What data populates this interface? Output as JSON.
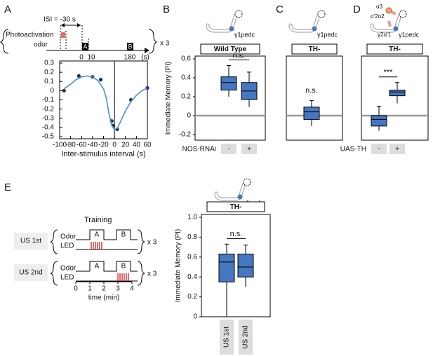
{
  "chart_data": [
    {
      "type": "line",
      "panel": "A",
      "xlabel": "Inter-stimulus interval (s)",
      "xlim": [
        -100,
        60
      ],
      "xticks": [
        -100,
        -80,
        -60,
        -40,
        -20,
        0,
        20,
        40,
        60
      ],
      "ylim": [
        -0.5,
        0.3
      ],
      "yticks": [
        -0.5,
        -0.4,
        -0.3,
        -0.2,
        -0.1,
        0,
        0.1,
        0.2,
        0.3
      ],
      "series": [
        {
          "color": "#1a2f5c",
          "style": "points",
          "x": [
            -92,
            -65,
            -40,
            -25,
            -5,
            -2,
            5,
            30,
            60
          ],
          "values": [
            0.0,
            0.16,
            0.15,
            0.12,
            -0.33,
            -0.38,
            -0.42,
            -0.1,
            0.03
          ]
        },
        {
          "color": "#4a8fd0",
          "style": "curve",
          "x": [
            -92,
            -80,
            -70,
            -60,
            -50,
            -40,
            -30,
            -20,
            -15,
            -10,
            -5,
            0,
            5,
            10,
            20,
            30,
            40,
            50,
            60
          ],
          "values": [
            0.02,
            0.07,
            0.12,
            0.15,
            0.16,
            0.15,
            0.11,
            0.02,
            -0.08,
            -0.25,
            -0.38,
            -0.42,
            -0.41,
            -0.35,
            -0.22,
            -0.12,
            -0.05,
            0.0,
            0.03
          ]
        }
      ]
    },
    {
      "type": "box",
      "panel": "B",
      "title": "Wild Type",
      "neuron_label": "γ1pedc",
      "ylabel": "Immediate Memory (PI)",
      "ylim": [
        -0.2,
        0.6
      ],
      "yticks": [
        -0.2,
        0,
        0.2,
        0.4,
        0.6
      ],
      "baseline": true,
      "color": "#4677c1",
      "boxes": [
        {
          "low": 0.2,
          "q1": 0.27,
          "median": 0.35,
          "q3": 0.41,
          "high": 0.53
        },
        {
          "low": 0.09,
          "q1": 0.17,
          "median": 0.26,
          "q3": 0.35,
          "high": 0.46
        }
      ],
      "annotation": "n.s.",
      "condition": {
        "label": "NOS-RNAi",
        "values": [
          "-",
          "+"
        ]
      }
    },
    {
      "type": "box",
      "panel": "C",
      "title": "TH-",
      "neuron_label": "γ1pedc",
      "ylim": [
        -0.2,
        0.6
      ],
      "baseline": true,
      "color": "#4677c1",
      "boxes": [
        {
          "low": -0.11,
          "q1": -0.04,
          "median": 0.04,
          "q3": 0.09,
          "high": 0.16
        }
      ],
      "annotation": "n.s."
    },
    {
      "type": "box",
      "panel": "D",
      "title": "TH-",
      "neuron_label": "γ1pedc",
      "compartments": [
        "α3",
        "α'2α2",
        "γ2α'1"
      ],
      "ylim": [
        -0.2,
        0.6
      ],
      "baseline": true,
      "color": "#4677c1",
      "boxes": [
        {
          "low": -0.16,
          "q1": -0.11,
          "median": -0.04,
          "q3": 0.0,
          "high": 0.1
        },
        {
          "low": 0.13,
          "q1": 0.21,
          "median": 0.25,
          "q3": 0.27,
          "high": 0.35
        }
      ],
      "annotation": "***",
      "condition": {
        "label": "UAS-TH",
        "values": [
          "-",
          "+"
        ]
      }
    },
    {
      "type": "box",
      "title": "TH-",
      "neuron_label": "γ1pedc",
      "ylabel": "Immediate Memory (PI)",
      "ylim": [
        0,
        1
      ],
      "yticks": [
        0,
        0.2,
        0.4,
        0.6,
        0.8,
        {
          "value": 1,
          "label": "1.0"
        }
      ],
      "color": "#4677c1",
      "boxes": [
        {
          "low": 0,
          "q1": 0.35,
          "median": 0.55,
          "q3": 0.63,
          "high": 0.73
        },
        {
          "low": 0.3,
          "q1": 0.4,
          "median": 0.5,
          "q3": 0.63,
          "high": 0.72
        }
      ],
      "annotation": "n.s.",
      "categories": [
        "US 1st",
        "US 2nd"
      ]
    }
  ],
  "diagram_a": {
    "isi": "ISI = -30 s",
    "photoactivation": "Photoactivation",
    "odor": "odor",
    "a": "A",
    "b": "B",
    "t0": "0",
    "t10": "10",
    "t180": "180",
    "unit": "(s)",
    "repeat": "x 3"
  },
  "diagram_e": {
    "panel": "E",
    "training": "Training",
    "rows": [
      {
        "label": "US 1st",
        "odor": "Odor",
        "led": "LED",
        "a": "A",
        "b": "B",
        "repeat": "x 3"
      },
      {
        "label": "US 2nd",
        "odor": "Odor",
        "led": "LED",
        "a": "A",
        "b": "B",
        "repeat": "x 3"
      }
    ],
    "times": [
      "0",
      "1",
      "2",
      "3",
      "4"
    ],
    "time_label": "time (min)"
  }
}
